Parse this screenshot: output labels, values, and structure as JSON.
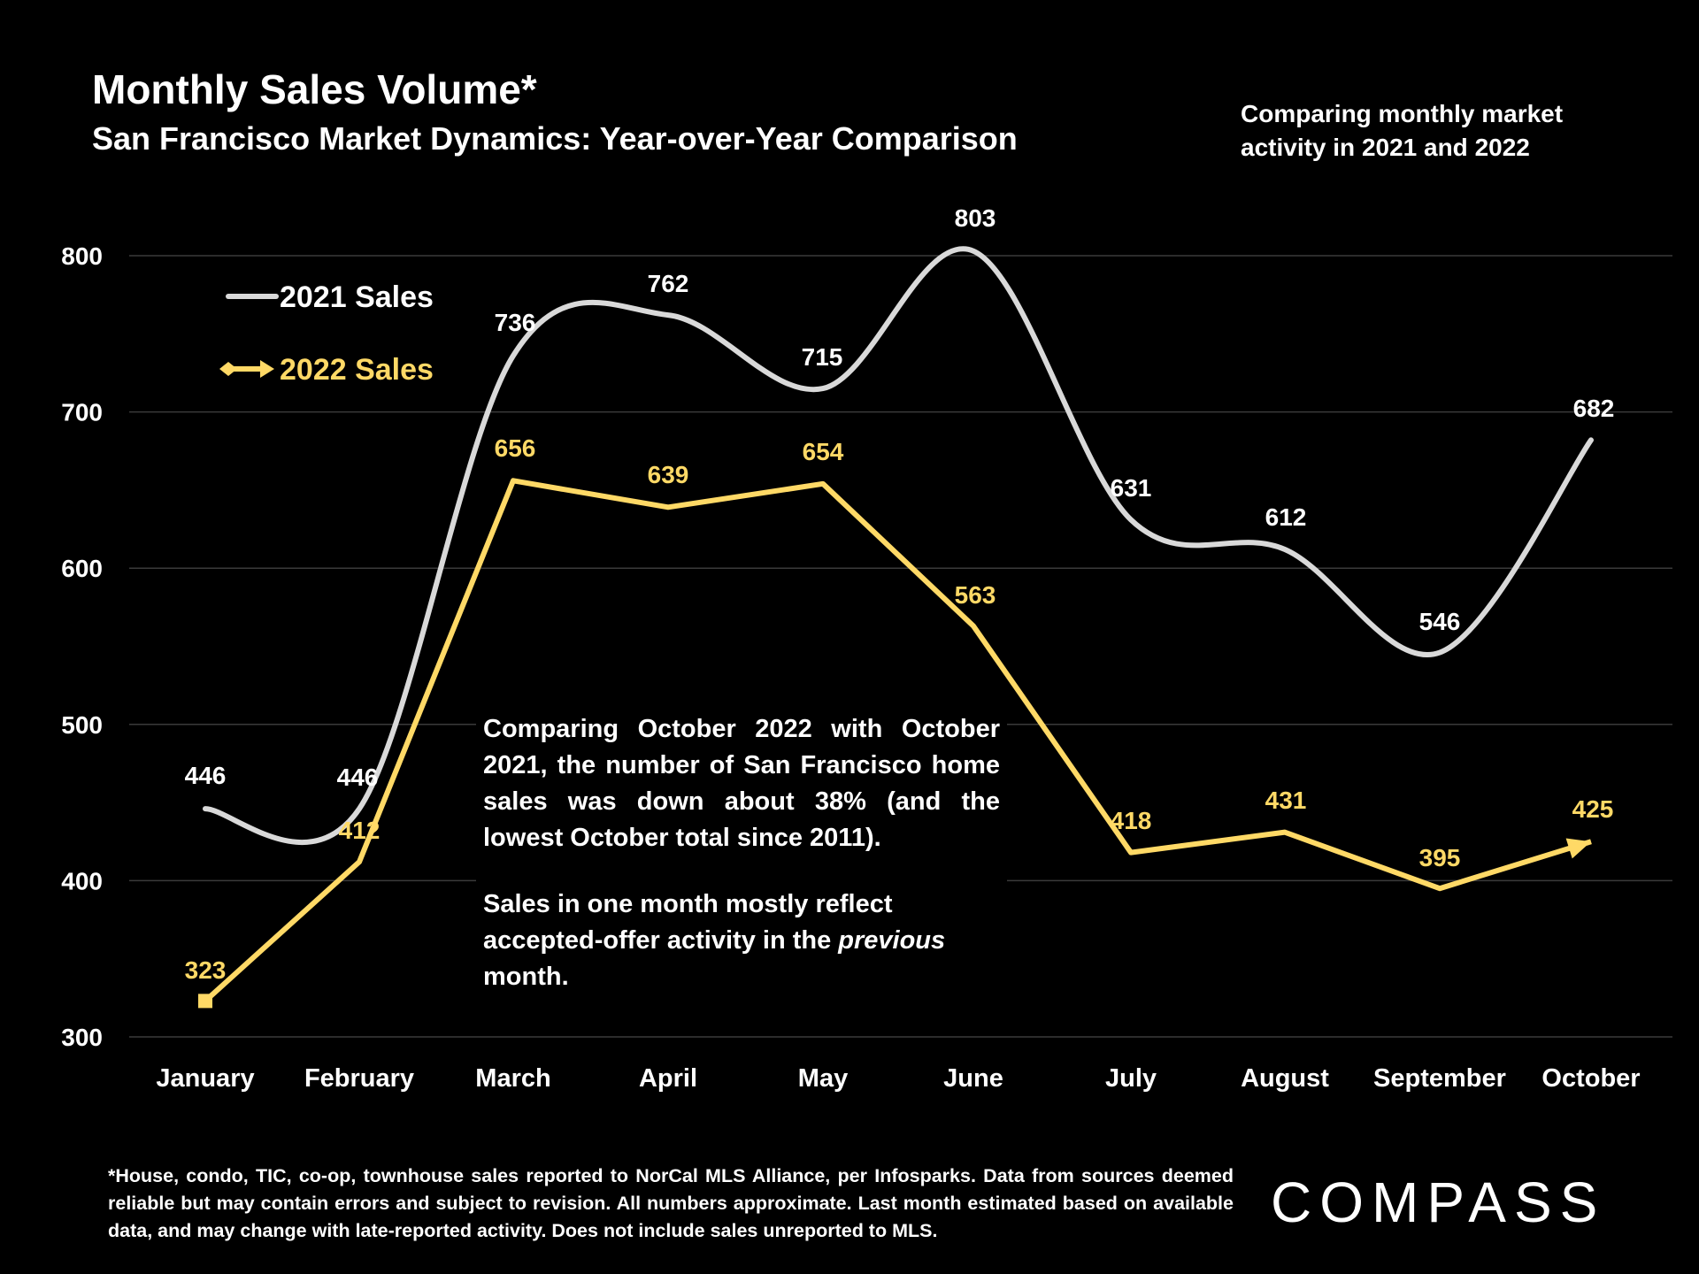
{
  "header": {
    "title": "Monthly Sales Volume*",
    "subtitle": "San Francisco Market Dynamics: Year-over-Year Comparison",
    "note": "Comparing monthly market activity in 2021 and 2022"
  },
  "chart_data": {
    "type": "line",
    "title": "Monthly Sales Volume*",
    "subtitle": "San Francisco Market Dynamics: Year-over-Year Comparison",
    "categories": [
      "January",
      "February",
      "March",
      "April",
      "May",
      "June",
      "July",
      "August",
      "September",
      "October"
    ],
    "ylim": [
      300,
      800
    ],
    "yticks": [
      300,
      400,
      500,
      600,
      700,
      800
    ],
    "grid": true,
    "legend_position": "top-left",
    "series": [
      {
        "name": "2021 Sales",
        "color": "#d9d9d9",
        "smooth": true,
        "values": [
          446,
          446,
          736,
          762,
          715,
          803,
          631,
          612,
          546,
          682
        ]
      },
      {
        "name": "2022 Sales",
        "color": "#ffd966",
        "smooth": false,
        "values": [
          323,
          412,
          656,
          639,
          654,
          563,
          418,
          431,
          395,
          425
        ]
      }
    ]
  },
  "annotation": {
    "p1": "Comparing October 2022 with October 2021, the number of San Francisco home sales was down about 38% (and the lowest October total since 2011).",
    "p2_before": "Sales in one month mostly reflect accepted-offer activity in the ",
    "p2_em": "previous",
    "p2_after": " month."
  },
  "footnote": "*House, condo, TIC, co-op, townhouse sales reported to NorCal MLS Alliance, per Infosparks. Data from sources deemed reliable but may contain errors and subject to revision. All numbers approximate. Last month estimated based on available data, and may change with late-reported activity. Does not include sales unreported to MLS.",
  "logo": "COMPASS"
}
